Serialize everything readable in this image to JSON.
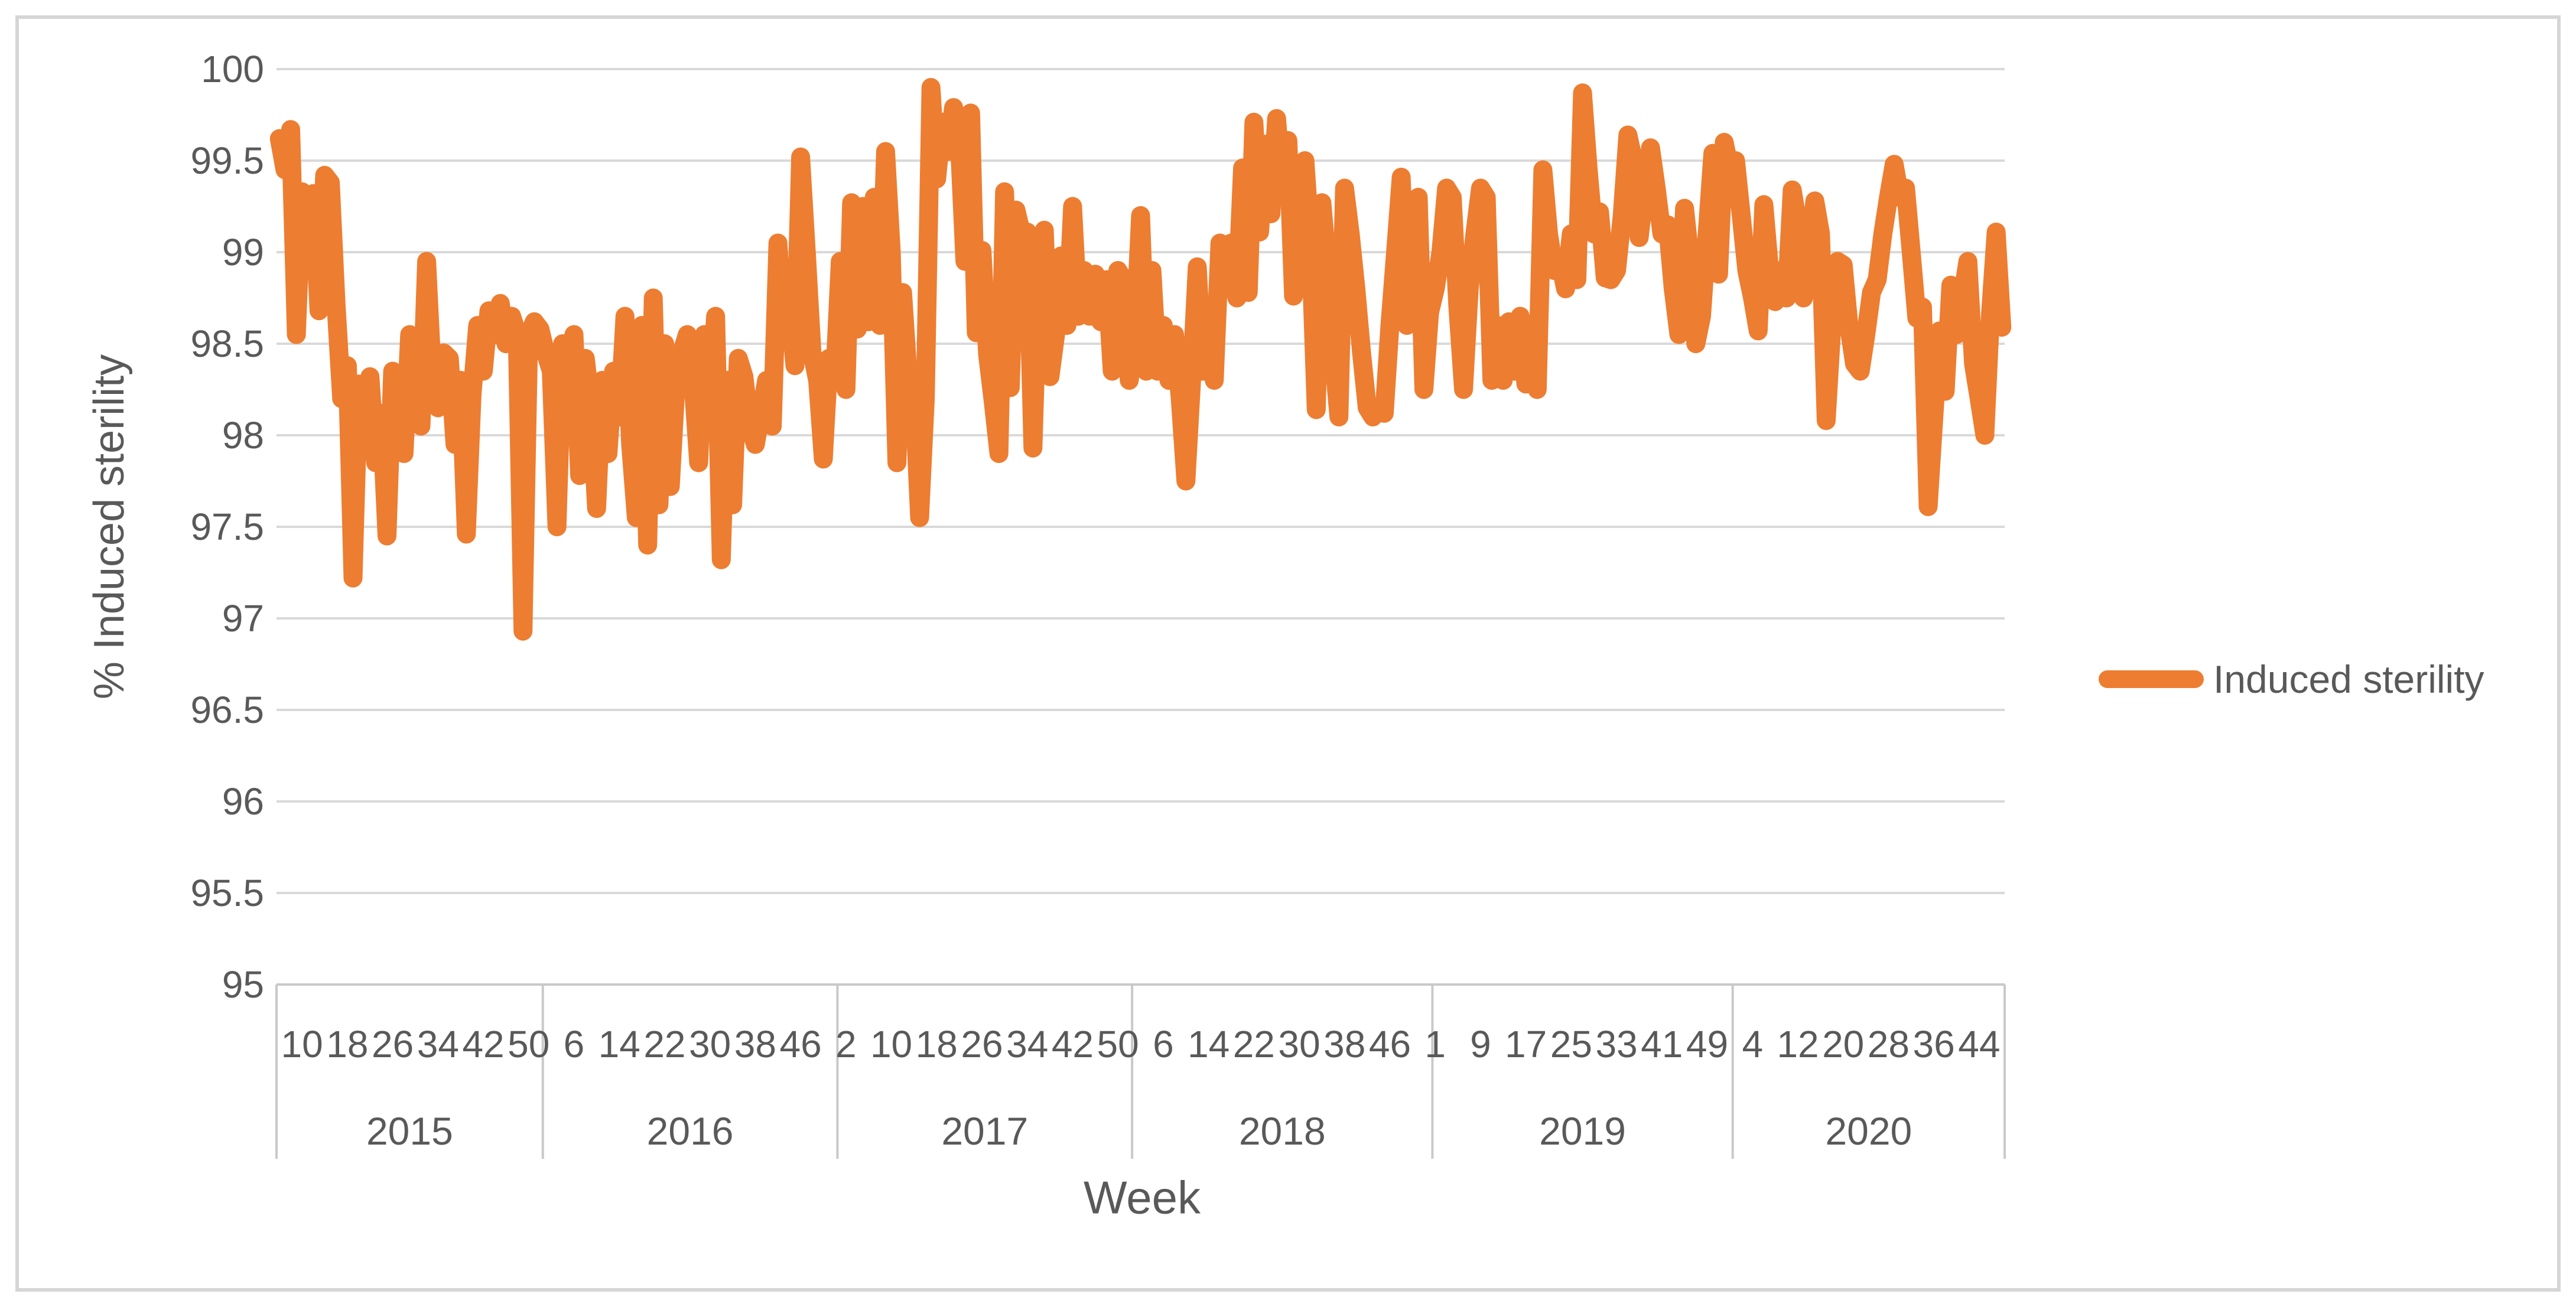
{
  "chart_data": {
    "type": "line",
    "title": "",
    "xlabel": "Week",
    "ylabel": "% Induced sterility",
    "ylim": [
      95,
      100
    ],
    "grid": "horizontal",
    "y_tick_labels": [
      "100",
      "99.5",
      "99",
      "98.5",
      "98",
      "97.5",
      "97",
      "96.5",
      "96",
      "95.5",
      "95"
    ],
    "y_ticks": [
      100,
      99.5,
      99,
      98.5,
      98,
      97.5,
      97,
      96.5,
      96,
      95.5,
      95
    ],
    "legend": {
      "position": "right",
      "entries": [
        "Induced sterility"
      ]
    },
    "x_axis": {
      "unit": "week-of-year",
      "tick_start_index": 4,
      "tick_every": 8,
      "tick_labels": [
        "10",
        "18",
        "26",
        "34",
        "42",
        "50",
        "6",
        "14",
        "22",
        "30",
        "38",
        "46",
        "2",
        "10",
        "18",
        "26",
        "34",
        "42",
        "50",
        "6",
        "14",
        "22",
        "30",
        "38",
        "46",
        "1",
        "9",
        "17",
        "25",
        "33",
        "41",
        "49",
        "4",
        "12",
        "20",
        "28",
        "36",
        "44"
      ],
      "year_groups": [
        {
          "label": "2015",
          "count": 47
        },
        {
          "label": "2016",
          "count": 52
        },
        {
          "label": "2017",
          "count": 52
        },
        {
          "label": "2018",
          "count": 53
        },
        {
          "label": "2019",
          "count": 53
        },
        {
          "label": "2020",
          "count": 48
        }
      ]
    },
    "series": [
      {
        "name": "Induced sterility",
        "color": "#ED7D31",
        "values": [
          99.62,
          99.45,
          99.67,
          98.55,
          99.33,
          99.25,
          99.32,
          98.68,
          99.42,
          99.38,
          98.72,
          98.2,
          98.38,
          97.22,
          98.28,
          97.95,
          98.32,
          97.85,
          98.12,
          97.45,
          98.35,
          98.22,
          97.9,
          98.55,
          98.18,
          98.05,
          98.95,
          98.32,
          98.15,
          98.45,
          98.42,
          97.95,
          98.3,
          97.46,
          98.22,
          98.6,
          98.35,
          98.68,
          98.55,
          98.72,
          98.5,
          98.65,
          98.55,
          96.93,
          98.55,
          98.62,
          98.58,
          98.45,
          98.35,
          97.5,
          98.5,
          98.42,
          98.55,
          97.78,
          98.42,
          98.15,
          97.6,
          98.3,
          97.9,
          98.35,
          98.1,
          98.65,
          97.95,
          97.55,
          98.6,
          97.4,
          98.75,
          97.62,
          98.5,
          97.72,
          98.28,
          98.45,
          98.55,
          98.3,
          97.85,
          98.55,
          98.2,
          98.65,
          97.32,
          98.3,
          97.62,
          98.42,
          98.32,
          98.05,
          97.95,
          98.12,
          98.3,
          98.05,
          99.05,
          98.55,
          98.72,
          98.38,
          99.52,
          99.0,
          98.45,
          98.3,
          97.87,
          98.42,
          98.3,
          98.95,
          98.25,
          99.27,
          98.58,
          99.25,
          98.62,
          99.3,
          98.6,
          99.55,
          99.0,
          97.85,
          98.78,
          98.3,
          98.23,
          97.55,
          98.2,
          99.9,
          99.4,
          99.71,
          99.55,
          99.79,
          99.62,
          98.95,
          99.76,
          98.56,
          99.01,
          98.44,
          98.18,
          97.9,
          99.33,
          98.26,
          99.23,
          99.1,
          99.11,
          97.93,
          98.95,
          99.12,
          98.32,
          98.55,
          98.98,
          98.6,
          99.25,
          98.65,
          98.9,
          98.65,
          98.88,
          98.62,
          98.85,
          98.35,
          98.9,
          98.85,
          98.3,
          98.55,
          99.2,
          98.35,
          98.9,
          98.35,
          98.6,
          98.3,
          98.55,
          98.2,
          97.75,
          98.3,
          98.92,
          98.35,
          98.62,
          98.3,
          99.05,
          98.8,
          99.05,
          98.75,
          99.46,
          98.78,
          99.71,
          99.11,
          99.59,
          99.21,
          99.73,
          99.33,
          99.61,
          98.76,
          99.3,
          99.5,
          99.04,
          98.14,
          99.27,
          98.9,
          98.45,
          98.1,
          99.35,
          99.1,
          98.8,
          98.45,
          98.15,
          98.1,
          98.14,
          98.12,
          98.6,
          99.0,
          99.41,
          98.6,
          99.1,
          99.3,
          98.25,
          98.67,
          98.8,
          99.0,
          99.35,
          99.3,
          98.7,
          98.25,
          98.8,
          99.1,
          99.35,
          99.3,
          98.3,
          98.6,
          98.3,
          98.62,
          98.35,
          98.65,
          98.28,
          98.6,
          98.25,
          99.45,
          99.1,
          98.9,
          98.95,
          98.8,
          99.1,
          98.85,
          99.87,
          99.45,
          99.1,
          99.22,
          98.86,
          98.85,
          98.9,
          99.2,
          99.64,
          99.5,
          99.08,
          99.35,
          99.57,
          99.35,
          99.1,
          99.15,
          98.8,
          98.55,
          99.24,
          98.95,
          98.5,
          98.65,
          99.1,
          99.54,
          98.88,
          99.6,
          99.45,
          99.5,
          99.2,
          98.9,
          98.75,
          98.57,
          99.26,
          98.9,
          98.73,
          98.9,
          98.75,
          99.34,
          99.15,
          98.75,
          99.0,
          99.28,
          99.1,
          98.08,
          98.6,
          98.95,
          98.93,
          98.6,
          98.39,
          98.35,
          98.55,
          98.78,
          98.85,
          99.1,
          99.3,
          99.48,
          99.3,
          99.35,
          99.0,
          98.64,
          98.7,
          97.61,
          98.1,
          98.57,
          98.24,
          98.82,
          98.55,
          98.75,
          98.95,
          98.39,
          98.2,
          98.0,
          98.66,
          99.11,
          98.59
        ]
      }
    ],
    "colors": {
      "line": "#ED7D31",
      "gridline": "#D9D9D9",
      "axis": "#C9C9C9",
      "text": "#595959",
      "frame_border": "#D6D6D6",
      "background": "#FFFFFF"
    }
  }
}
